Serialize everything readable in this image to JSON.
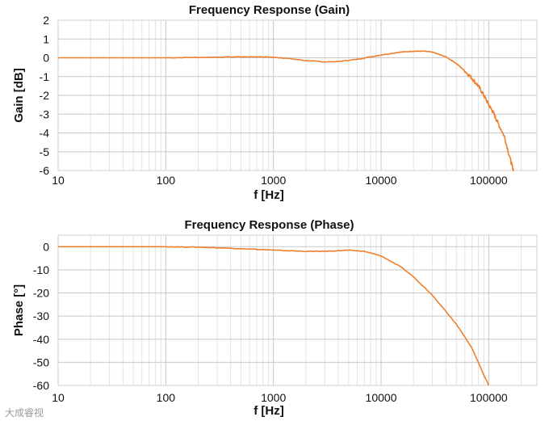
{
  "chart_data": [
    {
      "type": "line",
      "title": "Frequency Response (Gain)",
      "xlabel": "f [Hz]",
      "ylabel": "Gain [dB]",
      "xscale": "log",
      "xlim": [
        10,
        280000
      ],
      "ylim": [
        -6,
        2
      ],
      "xticks": [
        10,
        100,
        1000,
        10000,
        100000
      ],
      "xtick_labels": [
        "10",
        "100",
        "1000",
        "10000",
        "100000"
      ],
      "yticks": [
        2,
        1,
        0,
        -1,
        -2,
        -3,
        -4,
        -5,
        -6
      ],
      "ytick_labels": [
        "2",
        "1",
        "0",
        "-1",
        "-2",
        "-3",
        "-4",
        "-5",
        "-6"
      ],
      "grid": true,
      "series": [
        {
          "name": "Gain",
          "color": "#f07f2c",
          "x": [
            10,
            50,
            100,
            200,
            500,
            800,
            1200,
            2000,
            3000,
            4000,
            6000,
            10000,
            15000,
            20000,
            25000,
            30000,
            40000,
            50000,
            60000,
            70000,
            80000,
            90000,
            100000,
            110000,
            120000,
            140000,
            160000,
            170000
          ],
          "y": [
            0,
            0,
            0,
            0.02,
            0.05,
            0.05,
            0,
            -0.15,
            -0.22,
            -0.2,
            -0.08,
            0.15,
            0.3,
            0.35,
            0.35,
            0.3,
            0.05,
            -0.3,
            -0.7,
            -1.1,
            -1.5,
            -2.0,
            -2.5,
            -2.9,
            -3.4,
            -4.2,
            -5.5,
            -6.0
          ]
        }
      ]
    },
    {
      "type": "line",
      "title": "Frequency Response (Phase)",
      "xlabel": "f [Hz]",
      "ylabel": "Phase [°]",
      "xscale": "log",
      "xlim": [
        10,
        280000
      ],
      "ylim": [
        -60,
        5
      ],
      "xticks": [
        10,
        100,
        1000,
        10000,
        100000
      ],
      "xtick_labels": [
        "10",
        "100",
        "1000",
        "10000",
        "100000"
      ],
      "yticks": [
        0,
        -10,
        -20,
        -30,
        -40,
        -50,
        -60
      ],
      "ytick_labels": [
        "0",
        "-10",
        "-20",
        "-30",
        "-40",
        "-50",
        "-60"
      ],
      "grid": true,
      "series": [
        {
          "name": "Phase",
          "color": "#f07f2c",
          "x": [
            10,
            50,
            100,
            200,
            500,
            1000,
            2000,
            3000,
            5000,
            7000,
            10000,
            15000,
            20000,
            30000,
            40000,
            50000,
            60000,
            70000,
            80000,
            90000,
            100000
          ],
          "y": [
            0,
            0,
            0,
            -0.2,
            -0.8,
            -1.5,
            -2,
            -2,
            -1.5,
            -2,
            -4,
            -8.5,
            -13,
            -21,
            -28,
            -33.5,
            -39,
            -44,
            -50,
            -55.5,
            -60
          ]
        }
      ]
    }
  ],
  "watermark": "大成睿视"
}
